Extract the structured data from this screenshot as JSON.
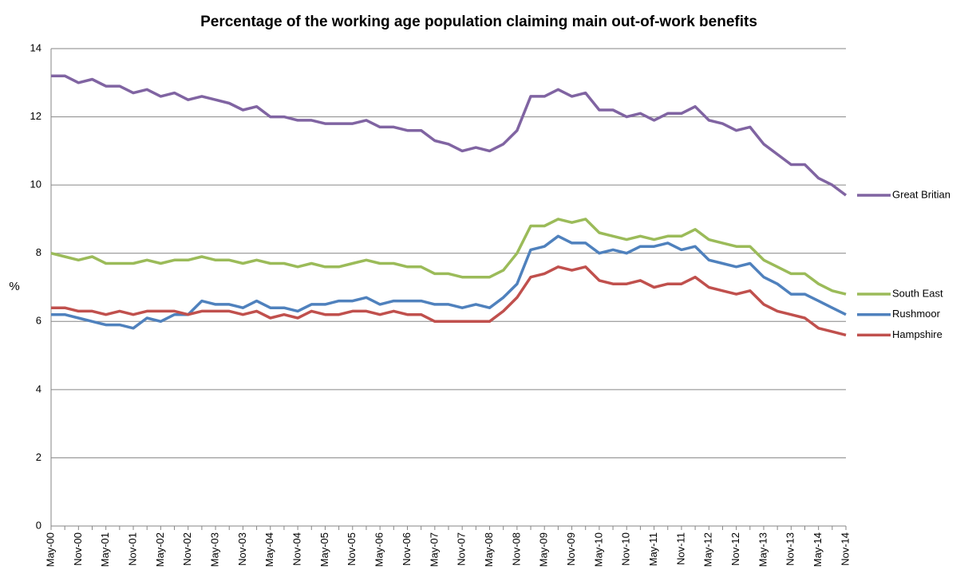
{
  "chart_data": {
    "type": "line",
    "title": "Percentage of the working age population claiming main out-of-work benefits",
    "y_label": "%",
    "categories": [
      "May-00",
      null,
      "Nov-00",
      null,
      "May-01",
      null,
      "Nov-01",
      null,
      "May-02",
      null,
      "Nov-02",
      null,
      "May-03",
      null,
      "Nov-03",
      null,
      "May-04",
      null,
      "Nov-04",
      null,
      "May-05",
      null,
      "Nov-05",
      null,
      "May-06",
      null,
      "Nov-06",
      null,
      "May-07",
      null,
      "Nov-07",
      null,
      "May-08",
      null,
      "Nov-08",
      null,
      "May-09",
      null,
      "Nov-09",
      null,
      "May-10",
      null,
      "Nov-10",
      null,
      "May-11",
      null,
      "Nov-11",
      null,
      "May-12",
      null,
      "Nov-12",
      null,
      "May-13",
      null,
      "Nov-13",
      null,
      "May-14",
      null,
      "Nov-14"
    ],
    "series": [
      {
        "name": "Great Britian",
        "color": "#8064a2",
        "values": [
          13.2,
          13.2,
          13.0,
          13.1,
          12.9,
          12.9,
          12.7,
          12.8,
          12.6,
          12.7,
          12.5,
          12.6,
          12.5,
          12.4,
          12.2,
          12.3,
          12.0,
          12.0,
          11.9,
          11.9,
          11.8,
          11.8,
          11.8,
          11.9,
          11.7,
          11.7,
          11.6,
          11.6,
          11.3,
          11.2,
          11.0,
          11.1,
          11.0,
          11.2,
          11.6,
          12.6,
          12.6,
          12.8,
          12.6,
          12.7,
          12.2,
          12.2,
          12.0,
          12.1,
          11.9,
          12.1,
          12.1,
          12.3,
          11.9,
          11.8,
          11.6,
          11.7,
          11.2,
          10.9,
          10.6,
          10.6,
          10.2,
          10.0,
          9.7
        ]
      },
      {
        "name": "South East",
        "color": "#9bbb59",
        "values": [
          8.0,
          7.9,
          7.8,
          7.9,
          7.7,
          7.7,
          7.7,
          7.8,
          7.7,
          7.8,
          7.8,
          7.9,
          7.8,
          7.8,
          7.7,
          7.8,
          7.7,
          7.7,
          7.6,
          7.7,
          7.6,
          7.6,
          7.7,
          7.8,
          7.7,
          7.7,
          7.6,
          7.6,
          7.4,
          7.4,
          7.3,
          7.3,
          7.3,
          7.5,
          8.0,
          8.8,
          8.8,
          9.0,
          8.9,
          9.0,
          8.6,
          8.5,
          8.4,
          8.5,
          8.4,
          8.5,
          8.5,
          8.7,
          8.4,
          8.3,
          8.2,
          8.2,
          7.8,
          7.6,
          7.4,
          7.4,
          7.1,
          6.9,
          6.8
        ]
      },
      {
        "name": "Rushmoor",
        "color": "#4f81bd",
        "values": [
          6.2,
          6.2,
          6.1,
          6.0,
          5.9,
          5.9,
          5.8,
          6.1,
          6.0,
          6.2,
          6.2,
          6.6,
          6.5,
          6.5,
          6.4,
          6.6,
          6.4,
          6.4,
          6.3,
          6.5,
          6.5,
          6.6,
          6.6,
          6.7,
          6.5,
          6.6,
          6.6,
          6.6,
          6.5,
          6.5,
          6.4,
          6.5,
          6.4,
          6.7,
          7.1,
          8.1,
          8.2,
          8.5,
          8.3,
          8.3,
          8.0,
          8.1,
          8.0,
          8.2,
          8.2,
          8.3,
          8.1,
          8.2,
          7.8,
          7.7,
          7.6,
          7.7,
          7.3,
          7.1,
          6.8,
          6.8,
          6.6,
          6.4,
          6.2
        ]
      },
      {
        "name": "Hampshire",
        "color": "#c0504d",
        "values": [
          6.4,
          6.4,
          6.3,
          6.3,
          6.2,
          6.3,
          6.2,
          6.3,
          6.3,
          6.3,
          6.2,
          6.3,
          6.3,
          6.3,
          6.2,
          6.3,
          6.1,
          6.2,
          6.1,
          6.3,
          6.2,
          6.2,
          6.3,
          6.3,
          6.2,
          6.3,
          6.2,
          6.2,
          6.0,
          6.0,
          6.0,
          6.0,
          6.0,
          6.3,
          6.7,
          7.3,
          7.4,
          7.6,
          7.5,
          7.6,
          7.2,
          7.1,
          7.1,
          7.2,
          7.0,
          7.1,
          7.1,
          7.3,
          7.0,
          6.9,
          6.8,
          6.9,
          6.5,
          6.3,
          6.2,
          6.1,
          5.8,
          5.7,
          5.6
        ]
      }
    ],
    "ylim": [
      0,
      14
    ],
    "yticks": [
      0,
      2,
      4,
      6,
      8,
      10,
      12,
      14
    ],
    "grid": true,
    "legend": "right"
  }
}
